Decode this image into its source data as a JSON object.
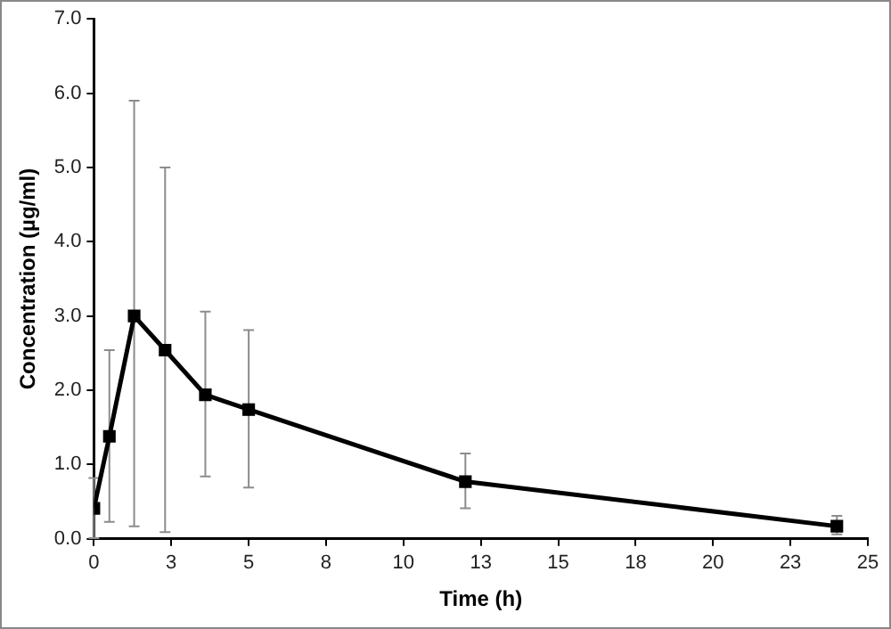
{
  "chart_data": {
    "type": "line",
    "xlabel": "Time (h)",
    "ylabel": "Concentration (µg/ml)",
    "x": [
      0,
      0.5,
      1.3,
      2.3,
      3.6,
      5,
      12,
      24
    ],
    "series": [
      {
        "color": "#000000",
        "values": [
          0.41,
          1.38,
          3.0,
          2.54,
          1.94,
          1.74,
          0.77,
          0.17
        ],
        "errors": [
          [
            0.01,
            0.82
          ],
          [
            0.23,
            2.54
          ],
          [
            0.17,
            5.9
          ],
          [
            0.09,
            5.0
          ],
          [
            0.84,
            3.06
          ],
          [
            0.69,
            2.81
          ],
          [
            0.41,
            1.15
          ],
          [
            0.06,
            0.31
          ]
        ]
      }
    ],
    "marker": "square",
    "line_style": "solid",
    "xlim": [
      0,
      25
    ],
    "xticks": [
      0,
      {
        "value": 2.5,
        "label": "3"
      },
      5,
      {
        "value": 7.5,
        "label": "8"
      },
      10,
      {
        "value": 12.5,
        "label": "13"
      },
      15,
      {
        "value": 17.5,
        "label": "18"
      },
      20,
      {
        "value": 22.5,
        "label": "23"
      },
      25
    ],
    "ylim": [
      0,
      7
    ],
    "yticks": [
      {
        "value": 0,
        "label": "0.0"
      },
      {
        "value": 1,
        "label": "1.0"
      },
      {
        "value": 2,
        "label": "2.0"
      },
      {
        "value": 3,
        "label": "3.0"
      },
      {
        "value": 4,
        "label": "4.0"
      },
      {
        "value": 5,
        "label": "5.0"
      },
      {
        "value": 6,
        "label": "6.0"
      },
      {
        "value": 7,
        "label": "7.0"
      }
    ],
    "grid": false,
    "legend": false
  }
}
